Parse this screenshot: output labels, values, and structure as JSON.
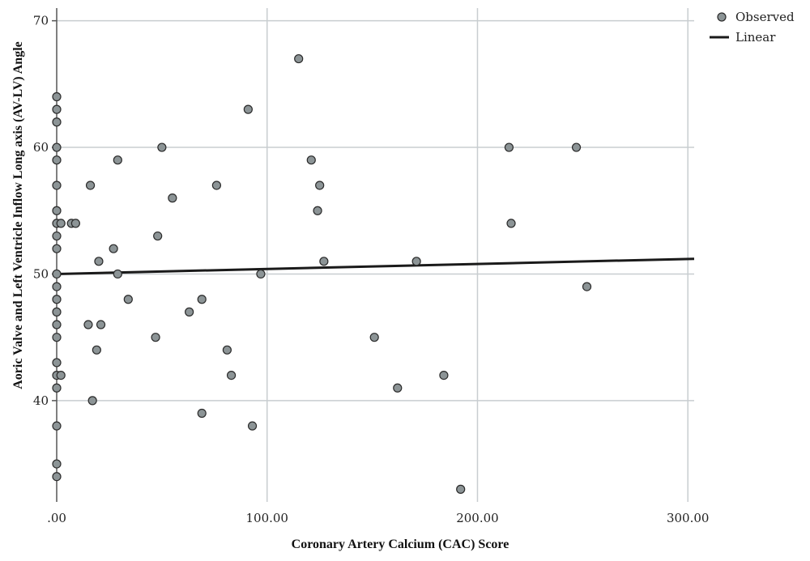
{
  "chart_data": {
    "type": "scatter",
    "title": "",
    "xlabel": "Coronary Artery Calcium (CAC) Score",
    "ylabel": "Aoric Valve and Left Ventricle Inflow Long axis (AV-LV) Angle",
    "xlim": [
      0,
      303
    ],
    "ylim": [
      32,
      71
    ],
    "x_ticks": [
      0,
      100,
      200,
      300
    ],
    "x_tick_labels": [
      ".00",
      "100.00",
      "200.00",
      "300.00"
    ],
    "y_ticks": [
      40,
      50,
      60,
      70
    ],
    "y_tick_labels": [
      "40",
      "50",
      "60",
      "70"
    ],
    "grid": true,
    "legend_position": "top-right",
    "colors": {
      "point_fill": "#8c9496",
      "point_stroke": "#2a2a2a",
      "line": "#1a1a1a",
      "grid": "#c8cdd0",
      "axis": "#555555"
    },
    "series": [
      {
        "name": "Observed",
        "marker": "circle",
        "points": [
          [
            0,
            64
          ],
          [
            0,
            63
          ],
          [
            0,
            62
          ],
          [
            0,
            60
          ],
          [
            0,
            59
          ],
          [
            0,
            57
          ],
          [
            0,
            55
          ],
          [
            0,
            54
          ],
          [
            0,
            53
          ],
          [
            0,
            52
          ],
          [
            0,
            50
          ],
          [
            0,
            49
          ],
          [
            0,
            48
          ],
          [
            0,
            47
          ],
          [
            0,
            46
          ],
          [
            0,
            45
          ],
          [
            0,
            43
          ],
          [
            0,
            42
          ],
          [
            0,
            41
          ],
          [
            0,
            38
          ],
          [
            0,
            35
          ],
          [
            0,
            34
          ],
          [
            2,
            54
          ],
          [
            2,
            42
          ],
          [
            7,
            54
          ],
          [
            9,
            54
          ],
          [
            15,
            46
          ],
          [
            16,
            57
          ],
          [
            17,
            40
          ],
          [
            19,
            44
          ],
          [
            20,
            51
          ],
          [
            21,
            46
          ],
          [
            27,
            52
          ],
          [
            29,
            59
          ],
          [
            29,
            50
          ],
          [
            34,
            48
          ],
          [
            47,
            45
          ],
          [
            48,
            53
          ],
          [
            50,
            60
          ],
          [
            55,
            56
          ],
          [
            63,
            47
          ],
          [
            69,
            48
          ],
          [
            69,
            39
          ],
          [
            76,
            57
          ],
          [
            81,
            44
          ],
          [
            83,
            42
          ],
          [
            91,
            63
          ],
          [
            93,
            38
          ],
          [
            97,
            50
          ],
          [
            115,
            67
          ],
          [
            121,
            59
          ],
          [
            124,
            55
          ],
          [
            125,
            57
          ],
          [
            127,
            51
          ],
          [
            151,
            45
          ],
          [
            162,
            41
          ],
          [
            171,
            51
          ],
          [
            184,
            42
          ],
          [
            192,
            33
          ],
          [
            215,
            60
          ],
          [
            216,
            54
          ],
          [
            247,
            60
          ],
          [
            252,
            49
          ]
        ]
      },
      {
        "name": "Linear",
        "type": "line",
        "points": [
          [
            0,
            50
          ],
          [
            303,
            51.2
          ]
        ]
      }
    ]
  }
}
